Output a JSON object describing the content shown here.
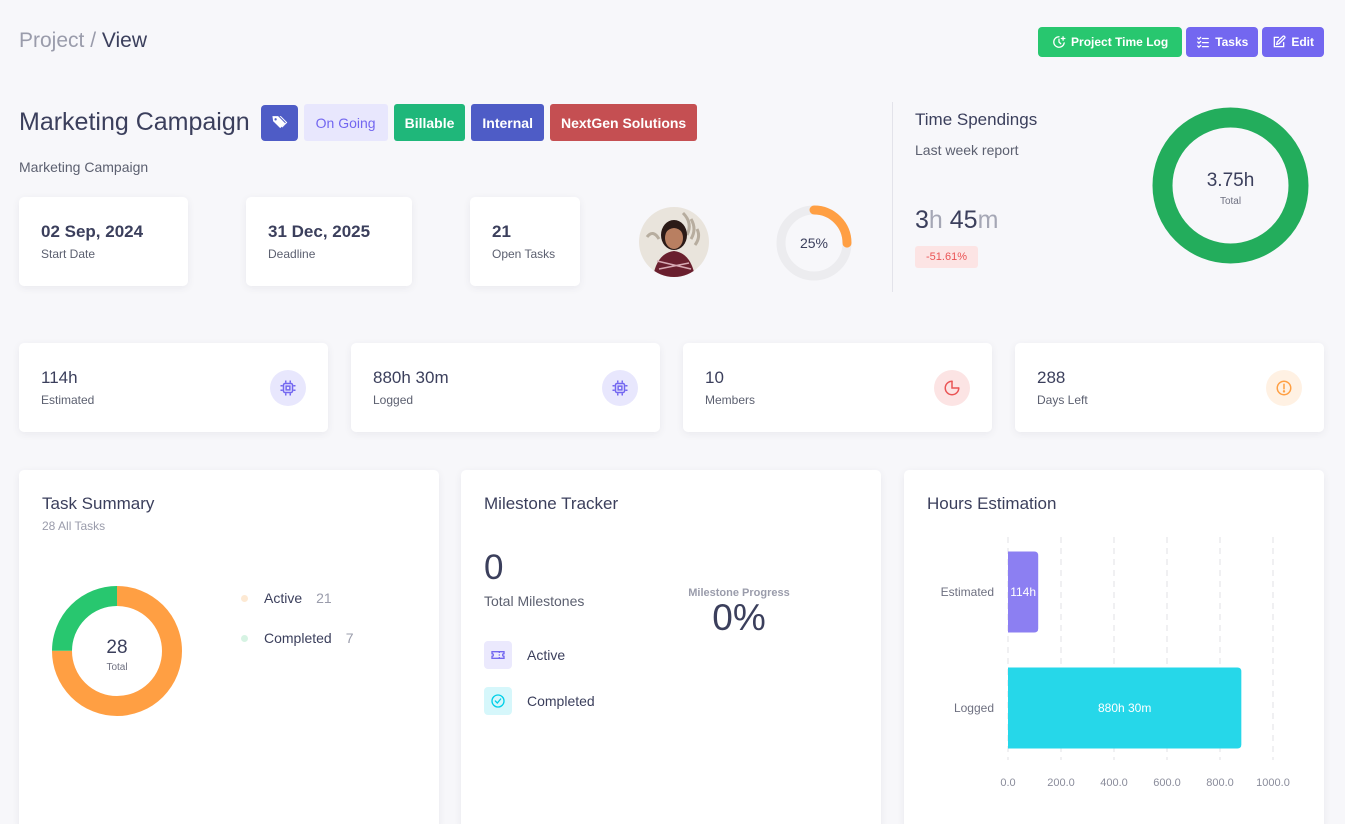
{
  "breadcrumb": {
    "parent": "Project",
    "separator": " / ",
    "current": "View"
  },
  "actions": {
    "time_log": "Project Time Log",
    "tasks": "Tasks",
    "edit": "Edit"
  },
  "project": {
    "name": "Marketing Campaign",
    "description": "Marketing Campaign",
    "status": "On Going",
    "billing": "Billable",
    "type": "Internal",
    "client": "NextGen Solutions"
  },
  "info": {
    "start_date": {
      "value": "02 Sep, 2024",
      "label": "Start Date"
    },
    "deadline": {
      "value": "31 Dec, 2025",
      "label": "Deadline"
    },
    "open_tasks": {
      "value": "21",
      "label": "Open Tasks"
    }
  },
  "progress": {
    "percent": 25,
    "label": "25%"
  },
  "time_spendings": {
    "title": "Time Spendings",
    "subtitle": "Last week report",
    "hours": "3",
    "hours_unit": "h",
    "minutes": "45",
    "minutes_unit": "m",
    "change": "-51.61%",
    "donut_value": "3.75h",
    "donut_label": "Total"
  },
  "stats": {
    "estimated": {
      "value": "114h",
      "label": "Estimated"
    },
    "logged": {
      "value": "880h 30m",
      "label": "Logged"
    },
    "members": {
      "value": "10",
      "label": "Members"
    },
    "days_left": {
      "value": "288",
      "label": "Days Left"
    }
  },
  "task_summary": {
    "title": "Task Summary",
    "subtitle": "28 All Tasks",
    "total": "28",
    "total_label": "Total",
    "items": [
      {
        "label": "Active",
        "count": "21",
        "value": 21,
        "color": "#ff9f43"
      },
      {
        "label": "Completed",
        "count": "7",
        "value": 7,
        "color": "#28c76f"
      }
    ]
  },
  "milestones": {
    "title": "Milestone Tracker",
    "total": "0",
    "total_label": "Total Milestones",
    "progress_label": "Milestone Progress",
    "progress": "0%",
    "active_label": "Active",
    "completed_label": "Completed"
  },
  "hours_estimation": {
    "title": "Hours Estimation",
    "chart_data": {
      "type": "bar",
      "orientation": "horizontal",
      "categories": [
        "Estimated",
        "Logged"
      ],
      "values": [
        114,
        880.5
      ],
      "data_labels": [
        "114h",
        "880h 30m"
      ],
      "colors": [
        "#8c7ff2",
        "#26d7e9"
      ],
      "xlim": [
        0,
        1000
      ],
      "xticks": [
        "0.0",
        "200.0",
        "400.0",
        "600.0",
        "800.0",
        "1000.0"
      ],
      "grid": true
    }
  }
}
